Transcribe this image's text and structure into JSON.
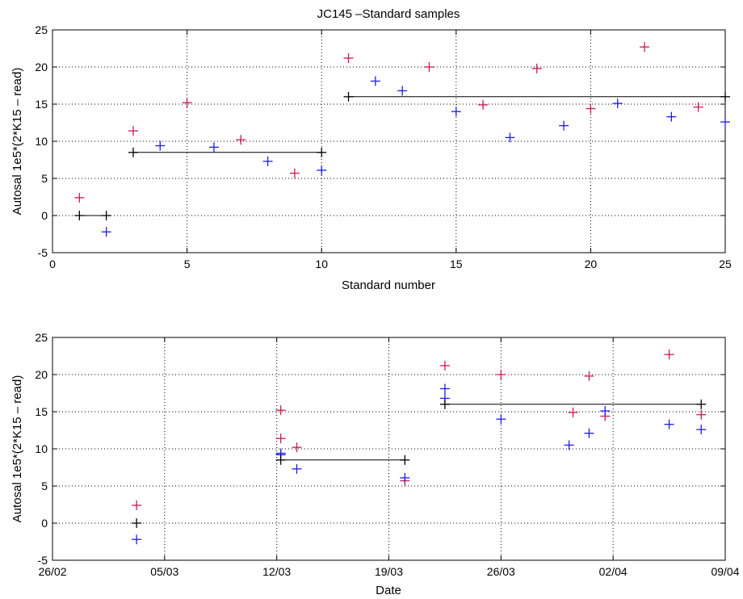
{
  "chart_data": [
    {
      "type": "scatter",
      "title": "JC145 –Standard samples",
      "xlabel": "Standard number",
      "ylabel": "Autosal 1e5*(2*K15 – read)",
      "xlim": [
        0,
        25
      ],
      "ylim": [
        -5,
        25
      ],
      "xticks": [
        0,
        5,
        10,
        15,
        20,
        25
      ],
      "yticks": [
        -5,
        0,
        5,
        10,
        15,
        20,
        25
      ],
      "grid": true,
      "series": [
        {
          "color": "#cc1a4a",
          "marker": "plus",
          "points": [
            [
              1,
              2.4
            ],
            [
              3,
              11.4
            ],
            [
              5,
              15.2
            ],
            [
              7,
              10.2
            ],
            [
              9,
              5.7
            ],
            [
              11,
              21.2
            ],
            [
              14,
              20.0
            ],
            [
              16,
              14.9
            ],
            [
              18,
              19.8
            ],
            [
              20,
              14.4
            ],
            [
              22,
              22.7
            ],
            [
              24,
              14.6
            ]
          ]
        },
        {
          "color": "#1f1fdf",
          "marker": "plus",
          "points": [
            [
              2,
              -2.2
            ],
            [
              4,
              9.4
            ],
            [
              6,
              9.2
            ],
            [
              8,
              7.3
            ],
            [
              10,
              6.1
            ],
            [
              12,
              18.1
            ],
            [
              13,
              16.8
            ],
            [
              15,
              14.0
            ],
            [
              17,
              10.5
            ],
            [
              19,
              12.1
            ],
            [
              21,
              15.1
            ],
            [
              23,
              13.3
            ],
            [
              25,
              12.6
            ]
          ]
        },
        {
          "color": "#000000",
          "marker": "plus",
          "lines": [
            {
              "x": [
                1,
                2
              ],
              "y": [
                0,
                0
              ]
            },
            {
              "x": [
                3,
                10
              ],
              "y": [
                8.5,
                8.5
              ]
            },
            {
              "x": [
                11,
                25
              ],
              "y": [
                16.0,
                16.0
              ]
            }
          ]
        }
      ]
    },
    {
      "type": "scatter",
      "title": "",
      "xlabel": "Date",
      "ylabel": "Autosal 1e5*(2*K15 – read)",
      "xlim": [
        "26/02",
        "09/04"
      ],
      "ylim": [
        -5,
        25
      ],
      "xticks": [
        "26/02",
        "05/03",
        "12/03",
        "19/03",
        "26/03",
        "02/04",
        "09/04"
      ],
      "yticks": [
        -5,
        0,
        5,
        10,
        15,
        20,
        25
      ],
      "grid": true,
      "series": [
        {
          "color": "#cc1a4a",
          "marker": "plus",
          "points": [
            [
              "03/03 06:00",
              2.4
            ],
            [
              "12/03 06:00",
              11.4
            ],
            [
              "12/03 06:00",
              15.2
            ],
            [
              "13/03 06:00",
              10.2
            ],
            [
              "20/03",
              5.7
            ],
            [
              "22/03 12:00",
              21.2
            ],
            [
              "26/03",
              20.0
            ],
            [
              "30/03 12:00",
              14.9
            ],
            [
              "31/03 12:00",
              19.8
            ],
            [
              "01/04 12:00",
              14.4
            ],
            [
              "05/04 12:00",
              22.7
            ],
            [
              "07/04 12:00",
              14.6
            ]
          ]
        },
        {
          "color": "#1f1fdf",
          "marker": "plus",
          "points": [
            [
              "03/03 06:00",
              -2.2
            ],
            [
              "12/03 06:00",
              9.4
            ],
            [
              "12/03 06:00",
              9.2
            ],
            [
              "13/03 06:00",
              7.3
            ],
            [
              "20/03",
              6.1
            ],
            [
              "22/03 12:00",
              18.1
            ],
            [
              "22/03 12:00",
              16.8
            ],
            [
              "26/03",
              14.0
            ],
            [
              "30/03 06:00",
              10.5
            ],
            [
              "31/03 12:00",
              12.1
            ],
            [
              "01/04 12:00",
              15.1
            ],
            [
              "05/04 12:00",
              13.3
            ],
            [
              "07/04 12:00",
              12.6
            ]
          ]
        },
        {
          "color": "#000000",
          "marker": "plus",
          "points": [
            [
              "03/03 06:00",
              0
            ]
          ],
          "lines": [
            {
              "x": [
                "12/03 06:00",
                "20/03"
              ],
              "y": [
                8.5,
                8.5
              ]
            },
            {
              "x": [
                "22/03 12:00",
                "07/04 12:00"
              ],
              "y": [
                16.0,
                16.0
              ]
            }
          ]
        }
      ]
    }
  ]
}
